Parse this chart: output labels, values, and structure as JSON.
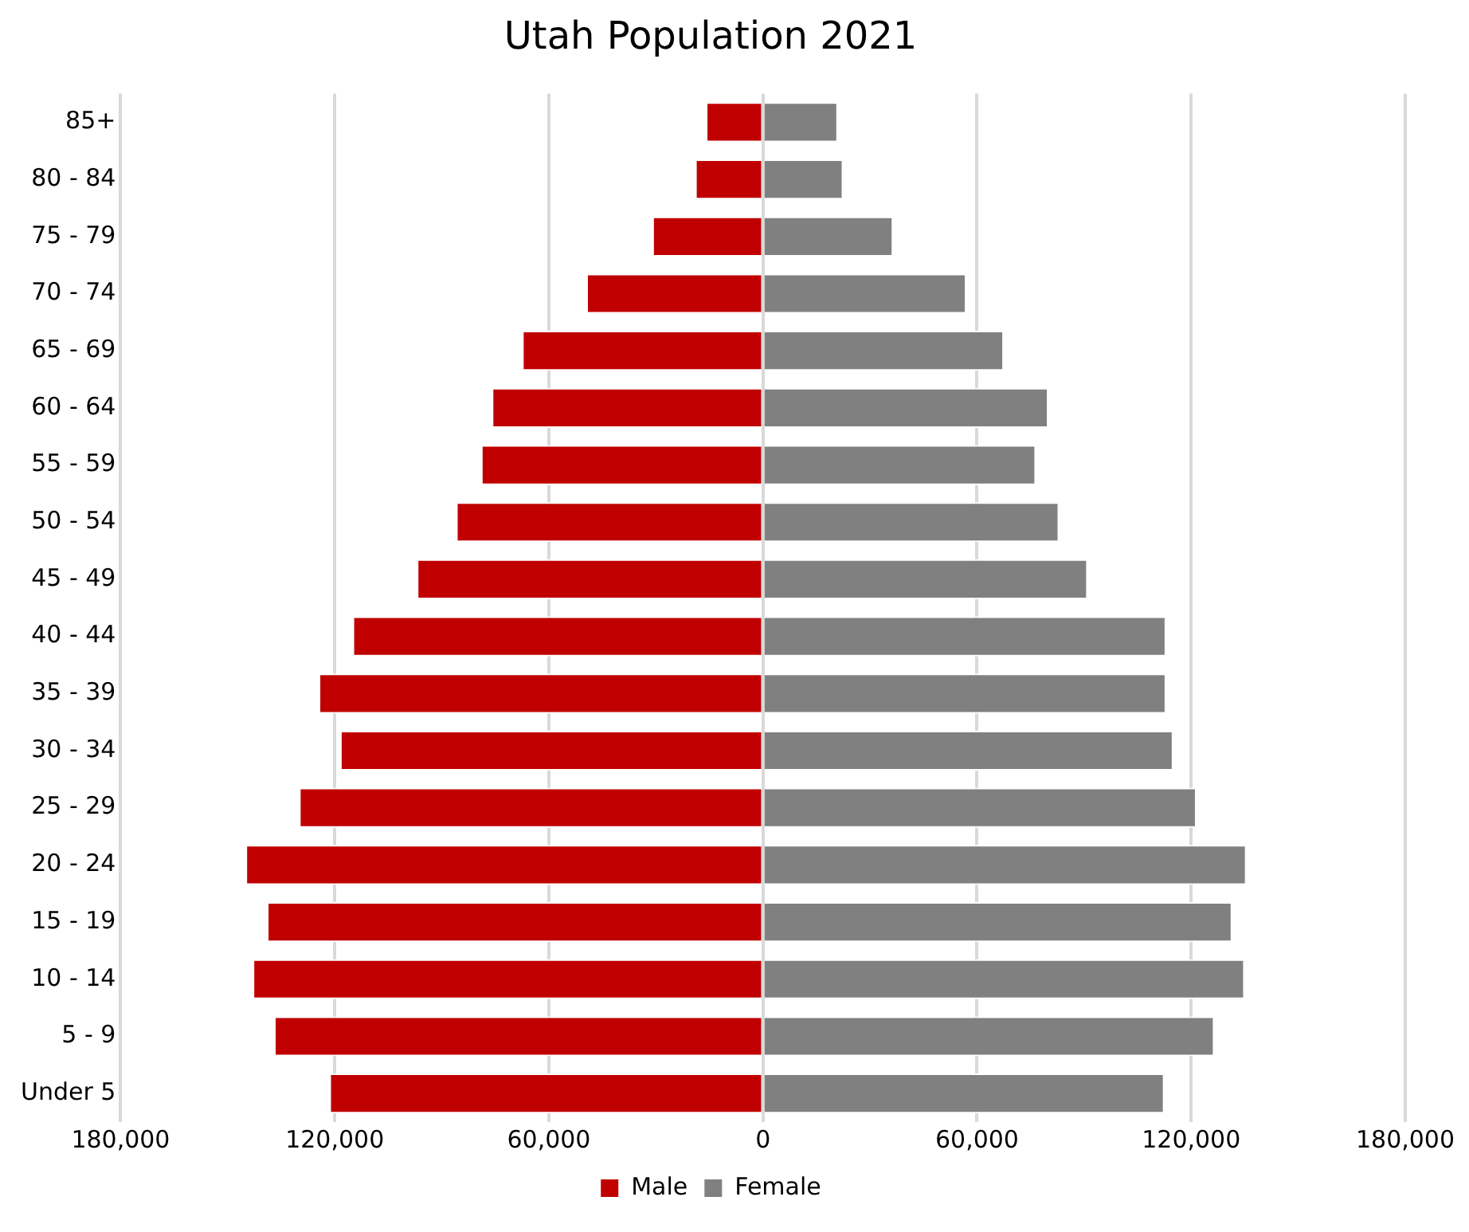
{
  "chart_data": {
    "type": "bar",
    "orientation": "horizontal",
    "stacked": true,
    "title": "Utah Population 2021",
    "categories": [
      "85+",
      "80 - 84",
      "75 - 79",
      "70 - 74",
      "65 - 69",
      "60 - 64",
      "55 - 59",
      "50 - 54",
      "45 - 49",
      "40 - 44",
      "35 - 39",
      "30 - 34",
      "25 - 29",
      "20 - 24",
      "15 - 19",
      "10 - 14",
      "5 - 9",
      "Under 5"
    ],
    "series": [
      {
        "name": "Male",
        "color": "#c00000",
        "values": [
          -16000,
          -19000,
          -31000,
          -49500,
          -67500,
          -76000,
          -79000,
          -86000,
          -97000,
          -115000,
          -124500,
          -118500,
          -130000,
          -145000,
          -139000,
          -143000,
          -137000,
          -121500
        ]
      },
      {
        "name": "Female",
        "color": "#808080",
        "values": [
          21000,
          22500,
          36500,
          57000,
          67500,
          80000,
          76500,
          83000,
          91000,
          113000,
          113000,
          115000,
          121500,
          135500,
          131500,
          135000,
          126500,
          112500
        ]
      }
    ],
    "xlim": [
      -180000,
      180000
    ],
    "xticks": [
      {
        "value": -180000,
        "label": "180,000"
      },
      {
        "value": -120000,
        "label": "120,000"
      },
      {
        "value": -60000,
        "label": "60,000"
      },
      0,
      {
        "value": 60000,
        "label": "60,000"
      },
      {
        "value": 120000,
        "label": "120,000"
      },
      {
        "value": 180000,
        "label": "180,000"
      }
    ],
    "grid": "x",
    "legend": "bottom"
  }
}
